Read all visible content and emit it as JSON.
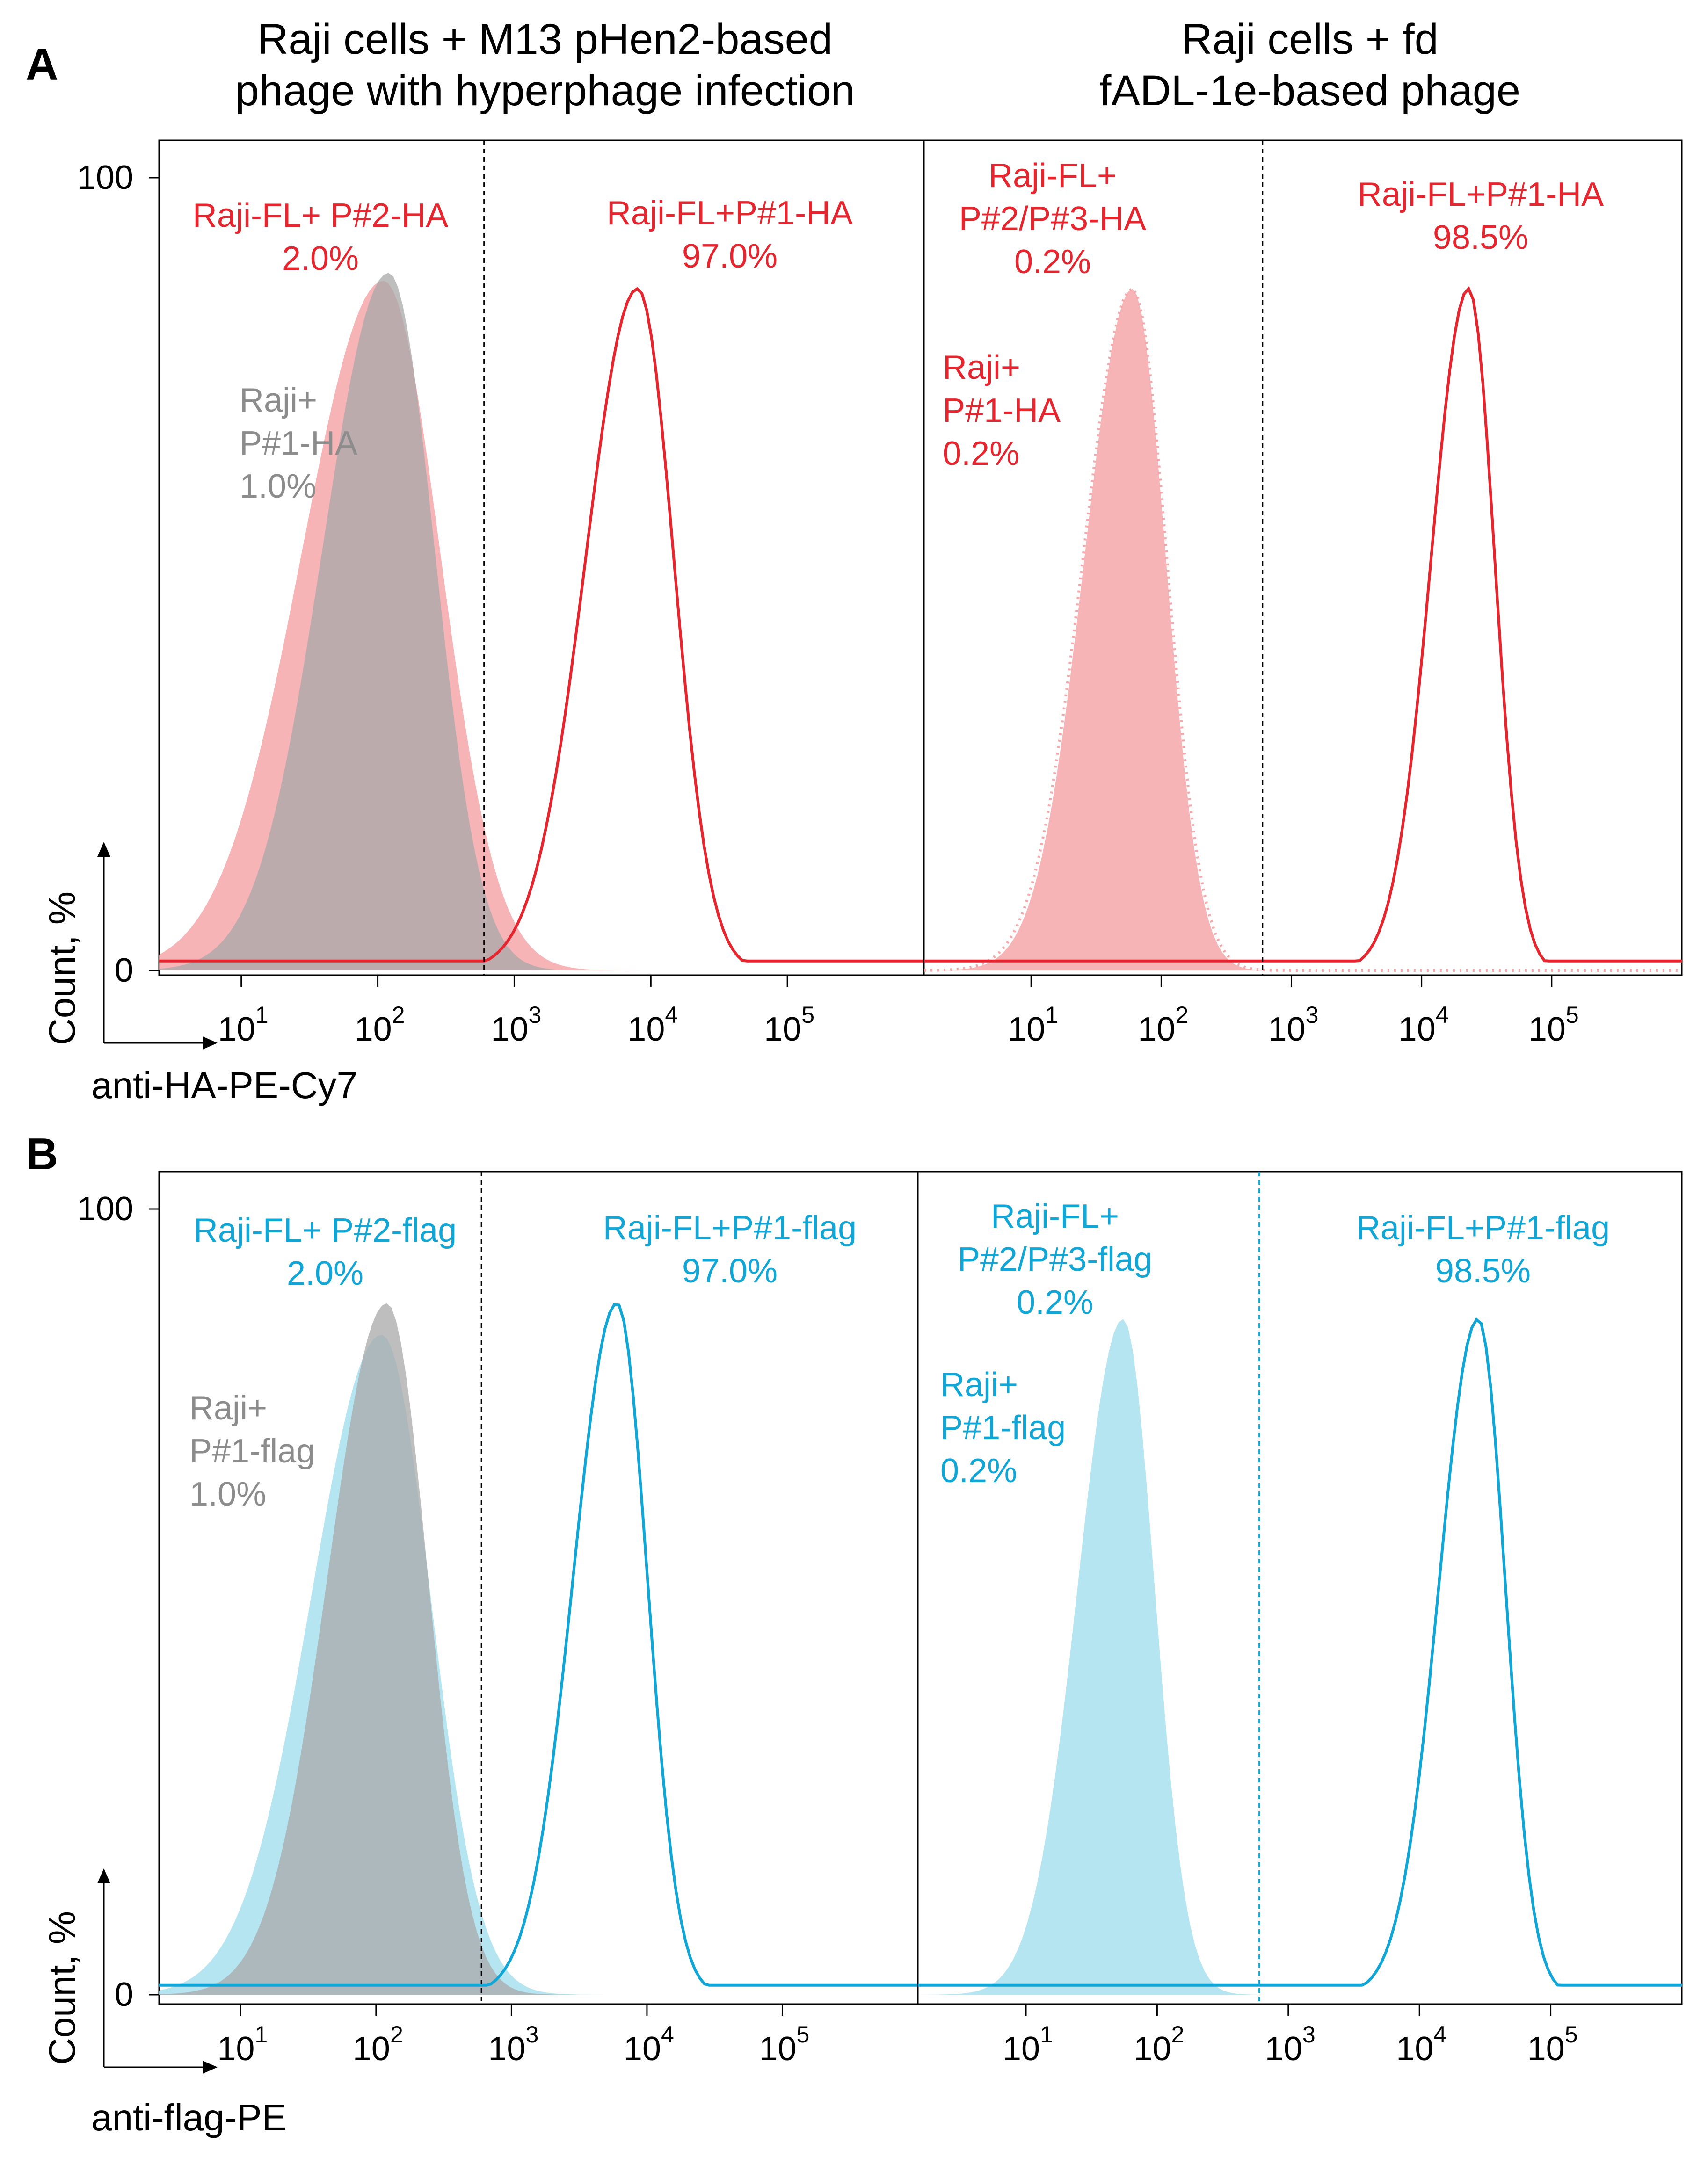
{
  "colors": {
    "ha": "#e5262f",
    "ha_fill": "#f6a7a9",
    "flag": "#11a6d6",
    "flag_fill": "#a9e0f0",
    "control": "#8c8c8c",
    "control_fill": "#a8a8a8"
  },
  "column_titles": {
    "left": [
      "Raji cells + M13 pHen2-based",
      "phage with hyperphage infection"
    ],
    "right": [
      "Raji cells + fd",
      "fADL-1e-based phage"
    ]
  },
  "chart_data": [
    {
      "panel": "A",
      "type": "area",
      "x_scale": "log",
      "xlabel": "anti-HA-PE-Cy7",
      "ylabel": "Count, %",
      "ylim": [
        0,
        100
      ],
      "y_ticks": [
        "0",
        "100"
      ],
      "x_ticks": [
        {
          "base": "10",
          "exp": "1"
        },
        {
          "base": "10",
          "exp": "2"
        },
        {
          "base": "10",
          "exp": "3"
        },
        {
          "base": "10",
          "exp": "4"
        },
        {
          "base": "10",
          "exp": "5"
        }
      ],
      "gate_value": 600,
      "subplots": [
        {
          "side": "left",
          "xlim": [
            2.5,
            1000000
          ],
          "series": [
            {
              "name": "Raji-FL+ P#2-HA",
              "style": "fill",
              "color": "ha_fill",
              "peak_x": 110,
              "peak_y": 87,
              "width": 0.52
            },
            {
              "name": "Raji+ P#1-HA",
              "style": "fill",
              "color": "control_fill",
              "peak_x": 120,
              "peak_y": 88,
              "width": 0.42
            },
            {
              "name": "Raji-FL+P#1-HA",
              "style": "line",
              "color": "ha",
              "peak_x": 8000,
              "peak_y": 86,
              "width": 0.33
            }
          ],
          "annotations": [
            {
              "lines": [
                "Raji-FL+ P#2-HA",
                "2.0%"
              ],
              "color": "ha"
            },
            {
              "lines": [
                "Raji+",
                "P#1-HA",
                "1.0%"
              ],
              "color": "control"
            },
            {
              "lines": [
                "Raji-FL+P#1-HA",
                "97.0%"
              ],
              "color": "ha"
            }
          ]
        },
        {
          "side": "right",
          "xlim": [
            1.5,
            1000000
          ],
          "series": [
            {
              "name": "Raji-FL+ P#2/P#3-HA",
              "style": "fill",
              "color": "ha_fill",
              "peak_x": 60,
              "peak_y": 86,
              "width": 0.32
            },
            {
              "name": "Raji+ P#1-HA",
              "style": "dotted",
              "color": "ha_fill",
              "peak_x": 60,
              "peak_y": 86,
              "width": 0.33
            },
            {
              "name": "Raji-FL+P#1-HA",
              "style": "line",
              "color": "ha",
              "peak_x": 23000,
              "peak_y": 86,
              "width": 0.25
            }
          ],
          "annotations": [
            {
              "lines": [
                "Raji-FL+",
                "P#2/P#3-HA",
                "0.2%"
              ],
              "color": "ha"
            },
            {
              "lines": [
                "Raji+",
                "P#1-HA",
                "0.2%"
              ],
              "color": "ha"
            },
            {
              "lines": [
                "Raji-FL+P#1-HA",
                "98.5%"
              ],
              "color": "ha"
            }
          ]
        }
      ]
    },
    {
      "panel": "B",
      "type": "area",
      "x_scale": "log",
      "xlabel": "anti-flag-PE",
      "ylabel": "Count, %",
      "ylim": [
        0,
        100
      ],
      "y_ticks": [
        "0",
        "100"
      ],
      "x_ticks": [
        {
          "base": "10",
          "exp": "1"
        },
        {
          "base": "10",
          "exp": "2"
        },
        {
          "base": "10",
          "exp": "3"
        },
        {
          "base": "10",
          "exp": "4"
        },
        {
          "base": "10",
          "exp": "5"
        }
      ],
      "gate_value": 600,
      "subplots": [
        {
          "side": "left",
          "xlim": [
            2.5,
            1000000
          ],
          "series": [
            {
              "name": "Raji-FL+ P#2-flag",
              "style": "fill",
              "color": "flag_fill",
              "peak_x": 110,
              "peak_y": 84,
              "width": 0.45
            },
            {
              "name": "Raji+ P#1-flag",
              "style": "fill",
              "color": "control_fill",
              "peak_x": 120,
              "peak_y": 88,
              "width": 0.38
            },
            {
              "name": "Raji-FL+P#1-flag",
              "style": "line",
              "color": "flag",
              "peak_x": 6000,
              "peak_y": 88,
              "width": 0.28
            }
          ],
          "annotations": [
            {
              "lines": [
                "Raji-FL+ P#2-flag",
                "2.0%"
              ],
              "color": "flag"
            },
            {
              "lines": [
                "Raji+",
                "P#1-flag",
                "1.0%"
              ],
              "color": "control"
            },
            {
              "lines": [
                "Raji-FL+P#1-flag",
                "97.0%"
              ],
              "color": "flag"
            }
          ]
        },
        {
          "side": "right",
          "xlim": [
            1.5,
            1000000
          ],
          "series": [
            {
              "name": "Raji-FL+ P#2/P#3-flag",
              "style": "fill",
              "color": "flag_fill",
              "peak_x": 55,
              "peak_y": 86,
              "width": 0.3
            },
            {
              "name": "Raji-FL+P#1-flag",
              "style": "line",
              "color": "flag",
              "peak_x": 28000,
              "peak_y": 86,
              "width": 0.26
            }
          ],
          "annotations": [
            {
              "lines": [
                "Raji-FL+",
                "P#2/P#3-flag",
                "0.2%"
              ],
              "color": "flag"
            },
            {
              "lines": [
                "Raji+",
                "P#1-flag",
                "0.2%"
              ],
              "color": "flag"
            },
            {
              "lines": [
                "Raji-FL+P#1-flag",
                "98.5%"
              ],
              "color": "flag"
            }
          ]
        }
      ]
    }
  ]
}
